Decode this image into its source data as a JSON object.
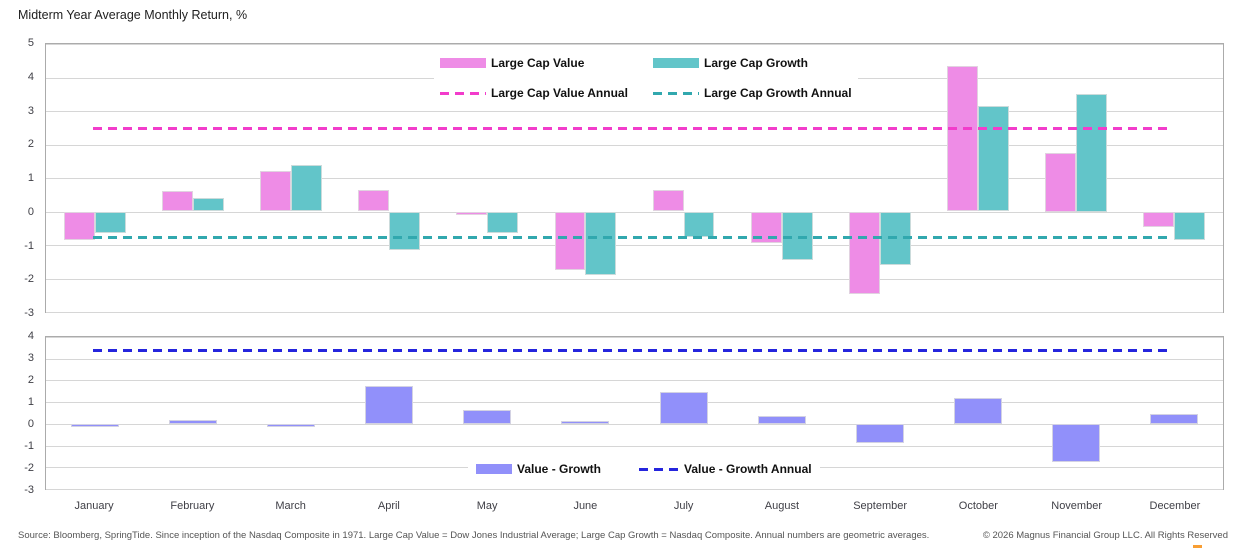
{
  "title": "Midterm Year Average Monthly Return, %",
  "months": [
    "January",
    "February",
    "March",
    "April",
    "May",
    "June",
    "July",
    "August",
    "September",
    "October",
    "November",
    "December"
  ],
  "footer": {
    "source": "Source: Bloomberg, SpringTide. Since inception of the Nasdaq Composite in 1971. Large Cap Value = Dow Jones Industrial Average; Large Cap Growth = Nasdaq Composite. Annual numbers are geometric averages.",
    "copyright": "© 2026 Magnus Financial Group LLC. All Rights Reserved"
  },
  "colors": {
    "grid": "#d6d6d6",
    "plot_border": "#ababab",
    "logo_accent": "#f7941d"
  },
  "chart_data": [
    {
      "type": "bar",
      "panel": "top",
      "categories": [
        "January",
        "February",
        "March",
        "April",
        "May",
        "June",
        "July",
        "August",
        "September",
        "October",
        "November",
        "December"
      ],
      "series": [
        {
          "name": "Large Cap Value",
          "color": "#ee8ce6",
          "values": [
            -0.85,
            0.6,
            1.2,
            0.65,
            -0.1,
            -1.75,
            0.65,
            -0.95,
            -2.45,
            4.35,
            1.75,
            -0.45
          ]
        },
        {
          "name": "Large Cap Growth",
          "color": "#62c5c9",
          "values": [
            -0.65,
            0.4,
            1.4,
            -1.15,
            -0.65,
            -1.9,
            -0.75,
            -1.45,
            -1.6,
            3.15,
            3.5,
            -0.85
          ]
        }
      ],
      "lines": [
        {
          "name": "Large Cap Value Annual",
          "color": "#f23ccb",
          "value": 2.45
        },
        {
          "name": "Large Cap Growth Annual",
          "color": "#31a8ae",
          "value": -0.8
        }
      ],
      "ylim": [
        -3,
        5
      ],
      "yticks": [
        5,
        4,
        3,
        2,
        1,
        0,
        -1,
        -2,
        -3
      ],
      "grid": true,
      "legend_position": "top-center-inside"
    },
    {
      "type": "bar",
      "panel": "bottom",
      "categories": [
        "January",
        "February",
        "March",
        "April",
        "May",
        "June",
        "July",
        "August",
        "September",
        "October",
        "November",
        "December"
      ],
      "series": [
        {
          "name": "Value - Growth",
          "color": "#9190fa",
          "values": [
            -0.15,
            0.2,
            -0.15,
            1.75,
            0.65,
            0.15,
            1.45,
            0.35,
            -0.9,
            1.2,
            -1.75,
            0.45
          ]
        }
      ],
      "lines": [
        {
          "name": "Value - Growth Annual",
          "color": "#2525dd",
          "value": 3.35
        }
      ],
      "ylim": [
        -3,
        4
      ],
      "yticks": [
        4,
        3,
        2,
        1,
        0,
        -1,
        -2,
        -3
      ],
      "grid": true,
      "legend_position": "bottom-center-inside"
    }
  ]
}
